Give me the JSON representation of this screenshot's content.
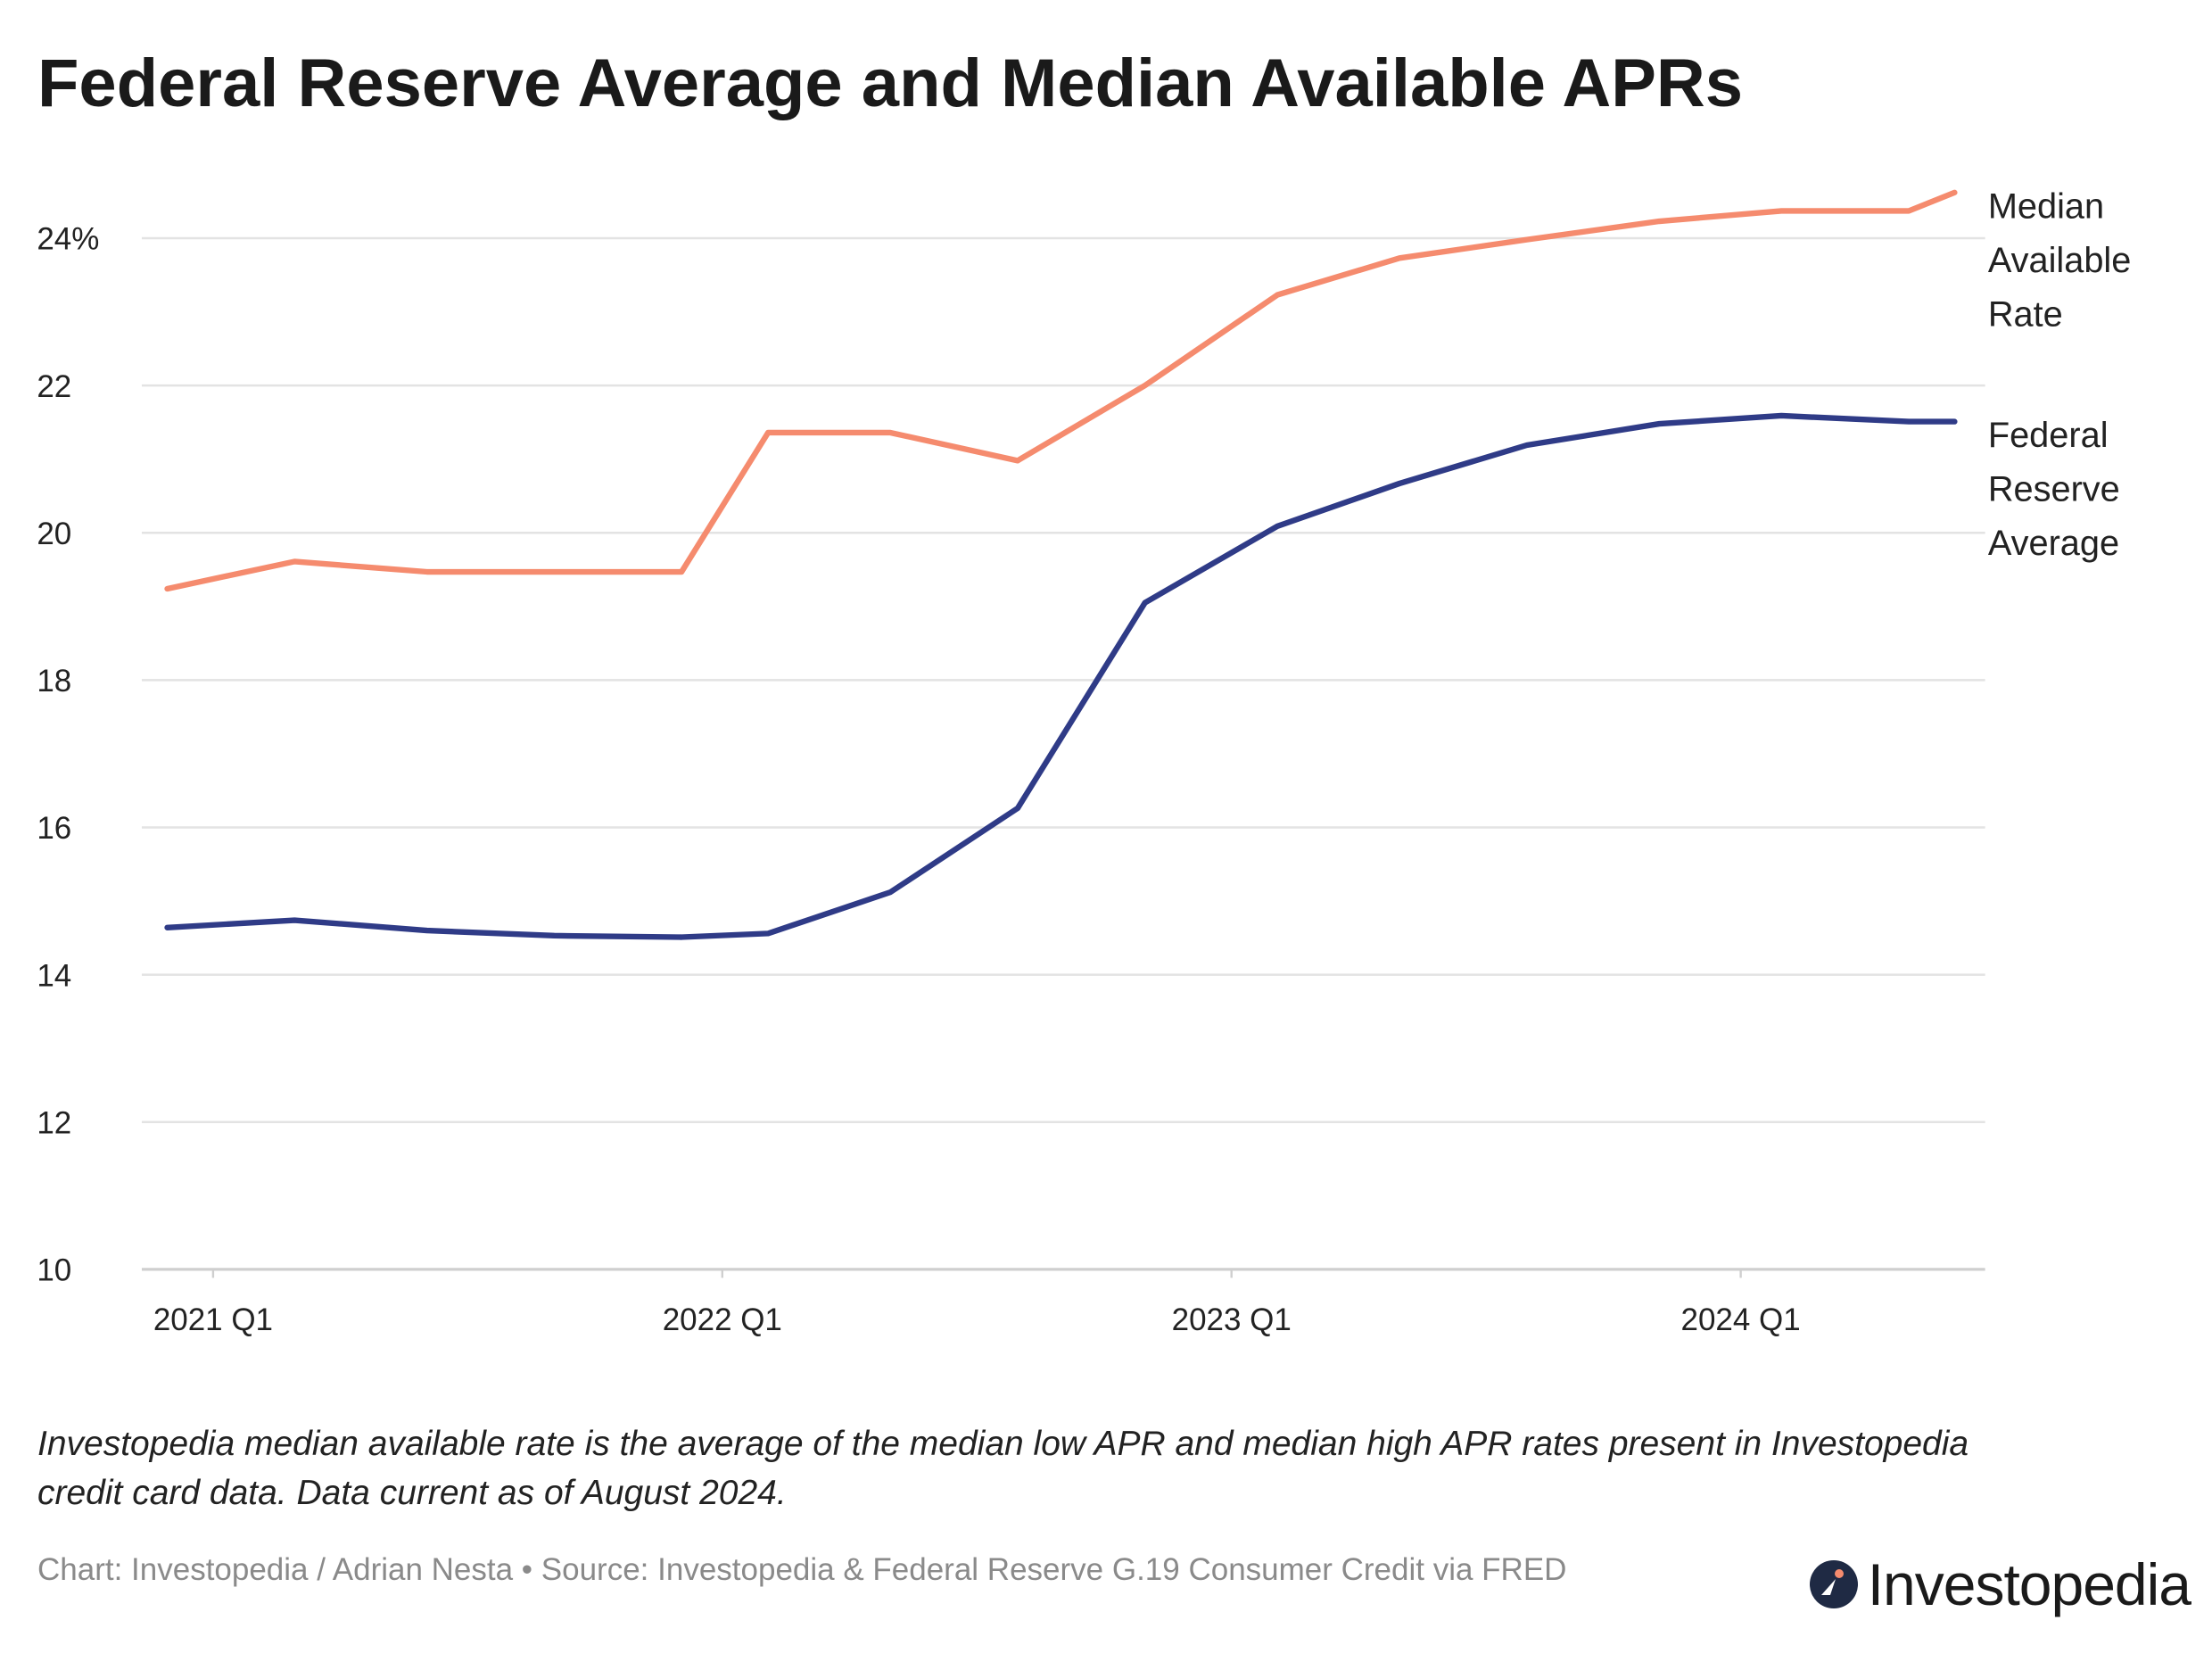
{
  "chart_data": {
    "type": "line",
    "title": "Federal Reserve Average and Median Available APRs",
    "x": [
      2020.91,
      2021.16,
      2021.42,
      2021.67,
      2021.92,
      2022.09,
      2022.33,
      2022.58,
      2022.83,
      2023.09,
      2023.33,
      2023.58,
      2023.84,
      2024.08,
      2024.33,
      2024.42
    ],
    "series": [
      {
        "name": "Median Available Rate",
        "color": "#f58b6e",
        "values": [
          19.24,
          19.61,
          19.47,
          19.47,
          19.47,
          21.36,
          21.36,
          20.98,
          22.0,
          23.23,
          23.73,
          23.98,
          24.23,
          24.37,
          24.37,
          24.62
        ]
      },
      {
        "name": "Federal Reserve Average",
        "color": "#2f3b87",
        "values": [
          14.64,
          14.74,
          14.6,
          14.53,
          14.51,
          14.56,
          15.12,
          16.26,
          19.05,
          20.09,
          20.67,
          21.19,
          21.48,
          21.59,
          21.51,
          21.51
        ]
      }
    ],
    "xlim": [
      2020.86,
      2024.48
    ],
    "xticks": [
      {
        "value": 2021,
        "label": "2021 Q1"
      },
      {
        "value": 2022,
        "label": "2022 Q1"
      },
      {
        "value": 2023,
        "label": "2023 Q1"
      },
      {
        "value": 2024,
        "label": "2024 Q1"
      }
    ],
    "ylim": [
      10,
      25
    ],
    "yticks": [
      10,
      12,
      14,
      16,
      18,
      20,
      22,
      {
        "value": 24,
        "label": "24%"
      }
    ],
    "grid": true,
    "note": "Investopedia median available rate is the average of the median low APR and median high APR rates present in Investopedia credit card data. Data current as of August 2024.",
    "credit": "Chart: Investopedia / Adrian Nesta • Source: Investopedia & Federal Reserve G.19 Consumer Credit via FRED",
    "logo": "Investopedia"
  }
}
